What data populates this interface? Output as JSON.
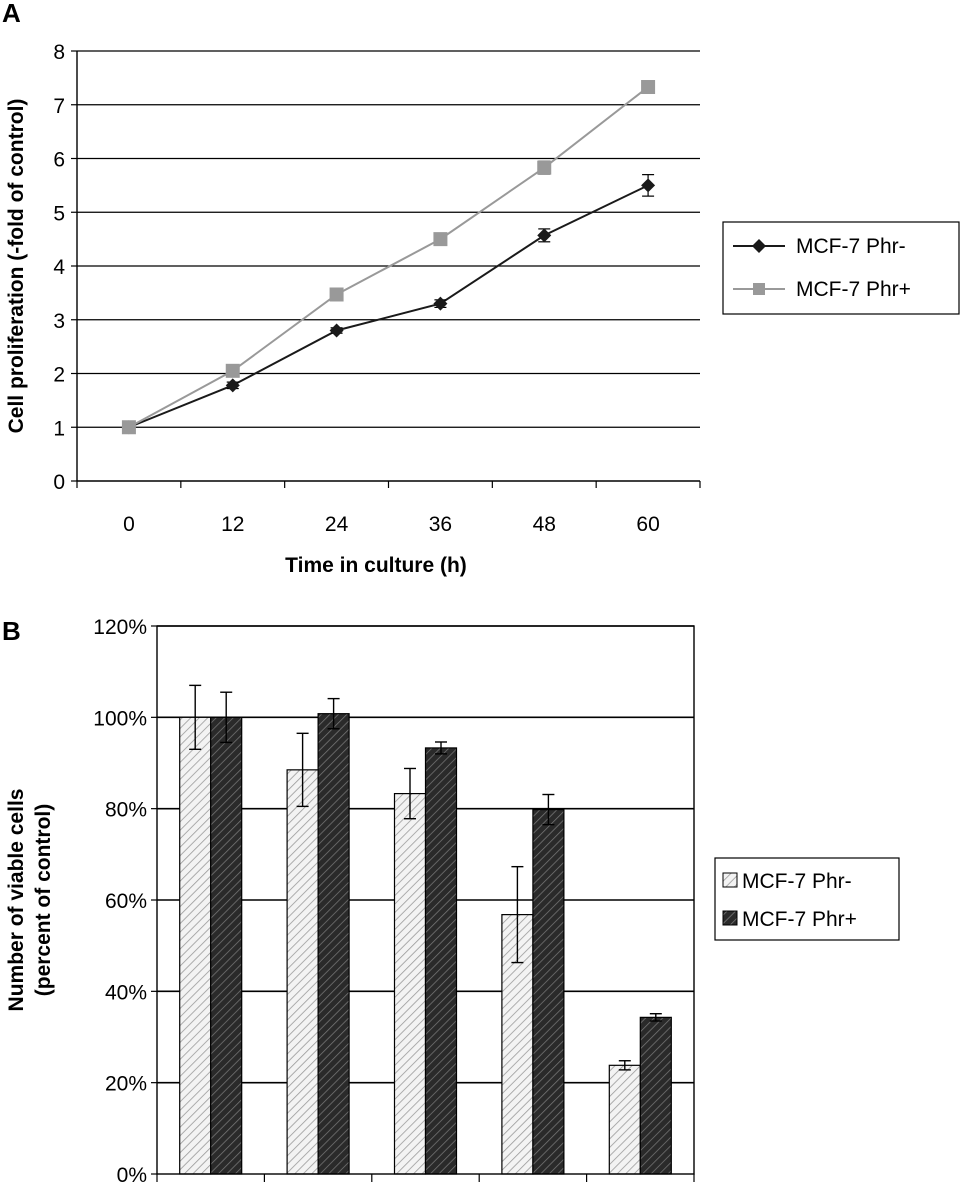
{
  "chart_data": [
    {
      "panel": "A",
      "type": "line",
      "xlabel": "Time in culture (h)",
      "ylabel": "Cell proliferation (-fold of control)",
      "categories": [
        "0",
        "12",
        "24",
        "36",
        "48",
        "60"
      ],
      "ylim": [
        0,
        8
      ],
      "yticks": [
        "0",
        "1",
        "2",
        "3",
        "4",
        "5",
        "6",
        "7",
        "8"
      ],
      "grid": true,
      "legend_position": "right",
      "series": [
        {
          "name": "MCF-7 Phr-",
          "marker": "diamond",
          "color": "#1a1a1a",
          "values": [
            1.0,
            1.78,
            2.8,
            3.3,
            4.57,
            5.5
          ],
          "errors": [
            0.03,
            0.06,
            0.05,
            0.07,
            0.12,
            0.2
          ]
        },
        {
          "name": "MCF-7 Phr+",
          "marker": "square",
          "color": "#999999",
          "values": [
            1.0,
            2.05,
            3.47,
            4.5,
            5.83,
            7.33
          ],
          "errors": [
            0.03,
            0.05,
            0.05,
            0.06,
            0.12,
            0.05
          ]
        }
      ]
    },
    {
      "panel": "B",
      "type": "bar",
      "ylabel_lines": [
        "Number of viable cells",
        "(percent of control)"
      ],
      "ylim": [
        0,
        120
      ],
      "yticks": [
        "0%",
        "20%",
        "40%",
        "60%",
        "80%",
        "100%",
        "120%"
      ],
      "grid": true,
      "legend_position": "right",
      "group_count": 5,
      "series": [
        {
          "name": "MCF-7 Phr-",
          "pattern": "light-hatch",
          "values": [
            100,
            88.5,
            83.3,
            56.8,
            23.8
          ],
          "errors": [
            7,
            8,
            5.5,
            10.5,
            1.0
          ]
        },
        {
          "name": "MCF-7 Phr+",
          "pattern": "dark-hatch",
          "values": [
            100,
            100.8,
            93.3,
            79.8,
            34.3
          ],
          "errors": [
            5.5,
            3.3,
            1.3,
            3.3,
            0.8
          ]
        }
      ]
    }
  ]
}
